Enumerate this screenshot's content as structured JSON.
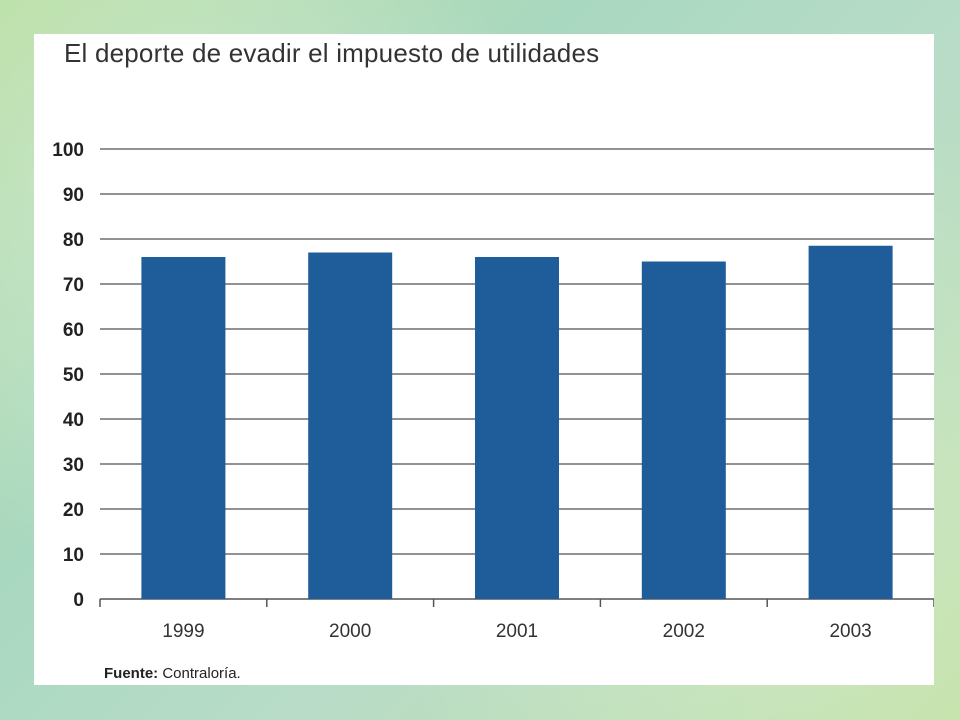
{
  "chart_data": {
    "type": "bar",
    "title": "El deporte de evadir el impuesto de utilidades",
    "categories": [
      "1999",
      "2000",
      "2001",
      "2002",
      "2003"
    ],
    "values": [
      76,
      77,
      76,
      75,
      78.5
    ],
    "ylim": [
      0,
      100
    ],
    "yticks": [
      0,
      10,
      20,
      30,
      40,
      50,
      60,
      70,
      80,
      90,
      100
    ],
    "grid": true,
    "bar_color": "#1f5d9a",
    "source_label": "Fuente:",
    "source_text": "Contraloría."
  }
}
